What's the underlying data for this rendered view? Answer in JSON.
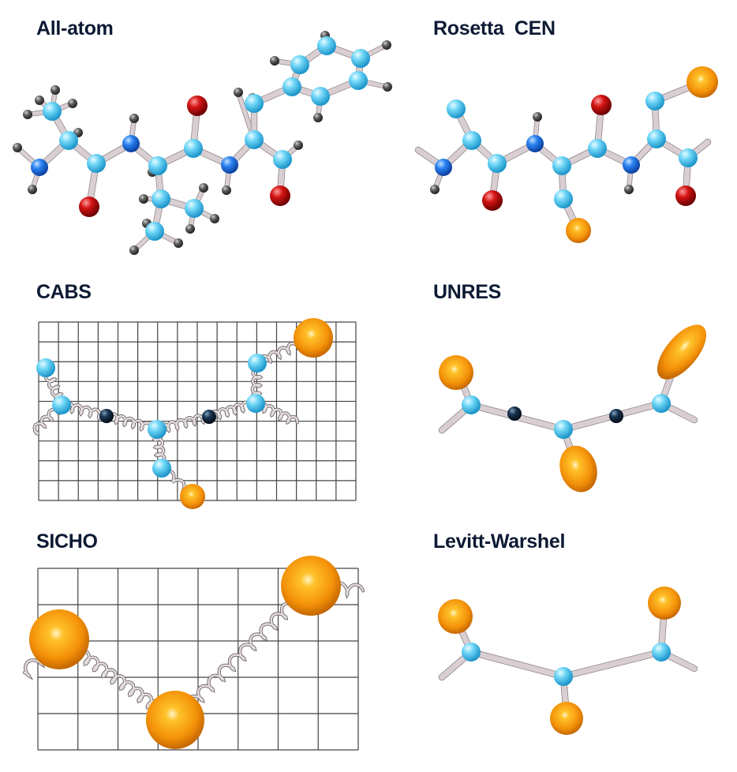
{
  "panels": [
    {
      "key": "allatom",
      "title": "All-atom"
    },
    {
      "key": "cen",
      "title": "Rosetta  CEN"
    },
    {
      "key": "cabs",
      "title": "CABS"
    },
    {
      "key": "unres",
      "title": "UNRES"
    },
    {
      "key": "sicho",
      "title": "SICHO"
    },
    {
      "key": "lw",
      "title": "Levitt-Warshel"
    }
  ],
  "colors": {
    "carbon": "#5fd0f5",
    "nitrogen": "#1a78f0",
    "oxygen": "#cc1111",
    "hydrogen": "#555555",
    "sidechain": "#f59a10",
    "pseudo": "#0f2740",
    "bond": "#d9cfd3",
    "grid": "#444444",
    "title": "#0d1a33"
  },
  "icons": [
    "carbon-atom",
    "nitrogen-atom",
    "oxygen-atom",
    "hydrogen-atom",
    "sidechain-sphere",
    "spring-bond",
    "lattice-grid"
  ]
}
